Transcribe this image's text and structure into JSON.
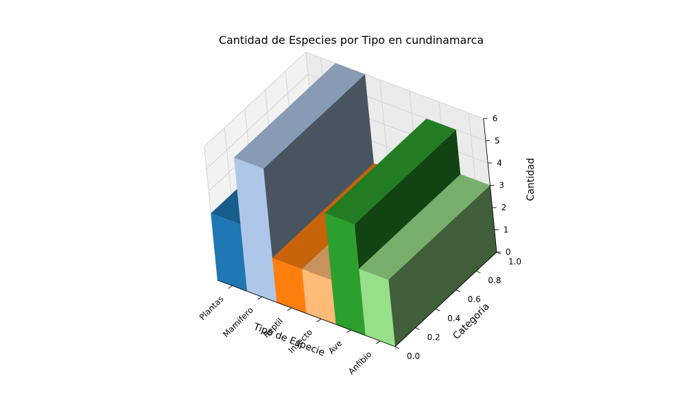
{
  "chart_data": {
    "type": "bar",
    "projection": "3d",
    "title": "Cantidad de Especies por Tipo en cundinamarca",
    "xlabel": "Tipo de Especie",
    "ylabel": "Categoria",
    "zlabel": "Cantidad",
    "categories": [
      "Plantas",
      "Mamifero",
      "Reptil",
      "Insecto",
      "Ave",
      "Anfibio"
    ],
    "values": [
      3,
      6,
      2,
      2,
      5,
      3
    ],
    "bar_colors": [
      "#1f77b4",
      "#aec7e8",
      "#ff7f0e",
      "#ffbb78",
      "#2ca02c",
      "#98df8a"
    ],
    "z_ticks": [
      "0",
      "1",
      "2",
      "3",
      "4",
      "5",
      "6"
    ],
    "y_ticks": [
      "0.0",
      "0.2",
      "0.4",
      "0.6",
      "0.8",
      "1.0"
    ],
    "zlim": [
      0,
      6
    ],
    "ylim": [
      0,
      1
    ],
    "grid": true
  }
}
